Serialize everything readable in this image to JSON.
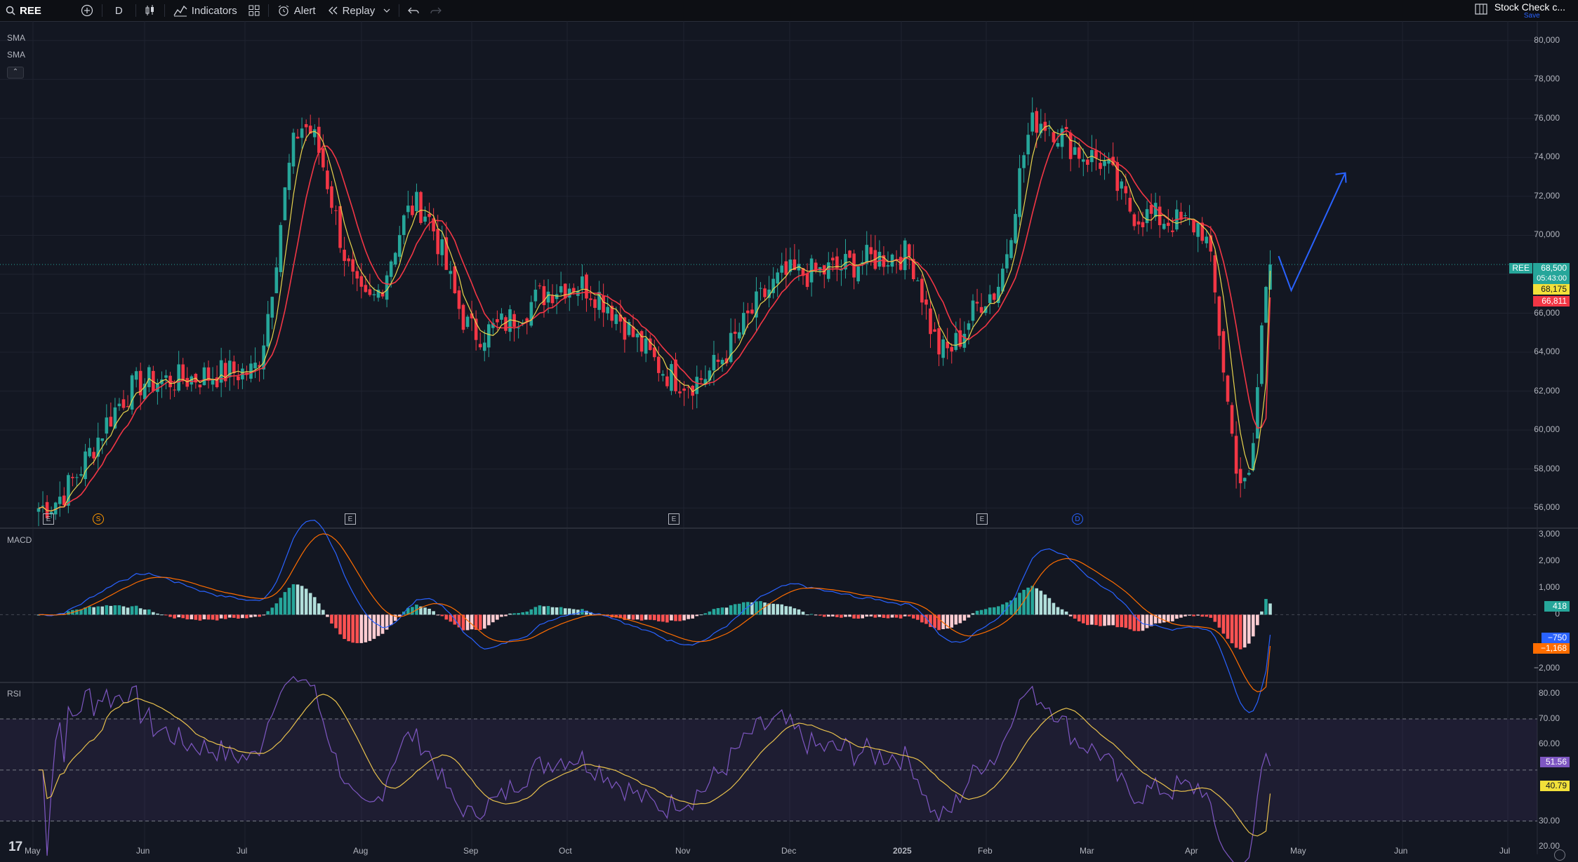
{
  "toolbar": {
    "symbol": "REE",
    "interval": "D",
    "indicators_label": "Indicators",
    "alert_label": "Alert",
    "replay_label": "Replay",
    "layout_name": "Stock Check c...",
    "save_label": "Save"
  },
  "legend": {
    "sma1": "SMA",
    "sma2": "SMA",
    "macd": "MACD",
    "rsi": "RSI"
  },
  "price_axis": [
    "80,000",
    "78,000",
    "76,000",
    "74,000",
    "72,000",
    "70,000",
    "68,000",
    "66,000",
    "64,000",
    "62,000",
    "60,000",
    "58,000",
    "56,000"
  ],
  "macd_axis": [
    "3,000",
    "2,000",
    "1,000",
    "0",
    "−2,000"
  ],
  "rsi_axis": [
    "80.00",
    "70.00",
    "60.00",
    "30.00",
    "20.00"
  ],
  "time_axis": [
    "May",
    "Jun",
    "Jul",
    "Aug",
    "Sep",
    "Oct",
    "Nov",
    "Dec",
    "2025",
    "Feb",
    "Mar",
    "Apr",
    "May",
    "Jun",
    "Jul"
  ],
  "price_badges": {
    "symbol_tag": "REE",
    "last": "68,500",
    "countdown": "05:43:00",
    "sma_fast": "68,175",
    "sma_slow": "66,811"
  },
  "macd_badges": {
    "hist": "418",
    "macd": "−750",
    "signal": "−1,168"
  },
  "rsi_badges": {
    "rsi": "51.56",
    "rsi_ma": "40.79"
  },
  "event_markers": [
    "E",
    "S",
    "E",
    "E",
    "E",
    "D"
  ],
  "colors": {
    "background": "#131722",
    "up": "#26a69a",
    "down": "#f23645",
    "sma_fast": "#e8d44d",
    "sma_slow": "#f23645",
    "macd": "#2962ff",
    "signal": "#ff6d00",
    "rsi": "#7e57c2",
    "rsi_ma": "#e8c14d",
    "drawing": "#2962ff"
  },
  "chart_data": {
    "type": "candlestick",
    "symbol": "REE",
    "interval": "D",
    "ylim": [
      55000,
      81000
    ],
    "key_points": [
      {
        "x": "May",
        "y": 56000
      },
      {
        "x": "Jun",
        "y": 62500
      },
      {
        "x": "Jul",
        "y": 63000
      },
      {
        "x": "Jul",
        "y": 75600
      },
      {
        "x": "Aug",
        "y": 66500
      },
      {
        "x": "Aug",
        "y": 71500
      },
      {
        "x": "Sep",
        "y": 65000
      },
      {
        "x": "Oct",
        "y": 67500
      },
      {
        "x": "Nov",
        "y": 62500
      },
      {
        "x": "Dec",
        "y": 68000
      },
      {
        "x": "2025",
        "y": 69000
      },
      {
        "x": "2025",
        "y": 64000
      },
      {
        "x": "Feb",
        "y": 67000
      },
      {
        "x": "Feb",
        "y": 75900
      },
      {
        "x": "Mar",
        "y": 74000
      },
      {
        "x": "Mar",
        "y": 71000
      },
      {
        "x": "Apr",
        "y": 70500
      },
      {
        "x": "Apr",
        "y": 57000
      },
      {
        "x": "Apr",
        "y": 68500
      }
    ],
    "last_close": 68500,
    "sma_fast_last": 68175,
    "sma_slow_last": 66811,
    "macd": {
      "ylim": [
        -2500,
        3200
      ],
      "histogram_last": 418,
      "macd_last": -750,
      "signal_last": -1168
    },
    "rsi": {
      "ylim": [
        17,
        84
      ],
      "upper_band": 70,
      "middle_band": 50,
      "lower_band": 30,
      "rsi_last": 51.56,
      "rsi_ma_last": 40.79
    }
  }
}
